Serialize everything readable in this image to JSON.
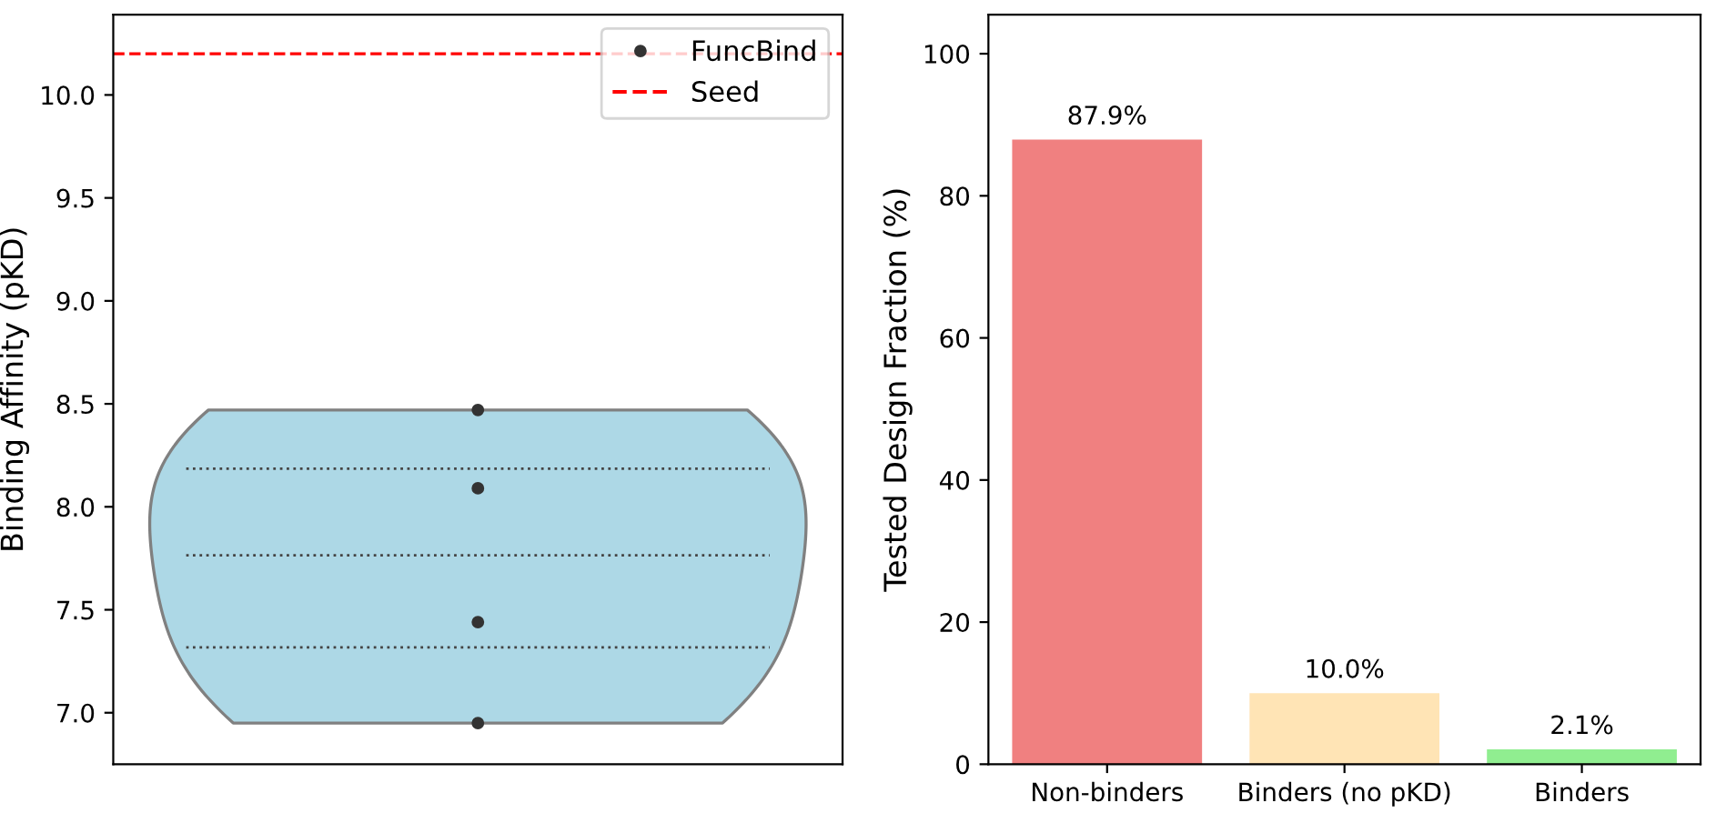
{
  "chart_data": [
    {
      "type": "scatter",
      "ylabel": "Binding Affinity (pKD)",
      "categories": [
        null
      ],
      "color": "#add8e6",
      "series": [
        {
          "name": "FuncBind",
          "color": "#333333",
          "x": [
            null,
            null,
            null,
            null
          ],
          "values": [
            8.47,
            8.09,
            7.44,
            6.95
          ]
        }
      ],
      "ref_lines": [
        {
          "axis": "y",
          "value": 10.2,
          "label": "Seed",
          "color": "#ff0000",
          "line_style": "dashed"
        }
      ],
      "ylim": [
        6.75,
        10.39
      ],
      "yticks": [
        {
          "value": 7.0,
          "label": "7.0"
        },
        {
          "value": 7.5,
          "label": "7.5"
        },
        {
          "value": 8.0,
          "label": "8.0"
        },
        {
          "value": 8.5,
          "label": "8.5"
        },
        {
          "value": 9.0,
          "label": "9.0"
        },
        {
          "value": 9.5,
          "label": "9.5"
        },
        {
          "value": 10.0,
          "label": "10.0"
        }
      ],
      "tick_labels": "y",
      "legend": "top right",
      "marker": "circle"
    },
    {
      "type": "bar",
      "ylabel": "Tested Design Fraction (%)",
      "categories": [
        "Non-binders",
        "Binders (no pKD)",
        "Binders"
      ],
      "values": [
        87.9,
        10.0,
        2.1
      ],
      "colors": [
        "#f08080",
        "#ffe4b5",
        "#90ee90"
      ],
      "value_labels": [
        "87.9%",
        "10.0%",
        "2.1%"
      ],
      "ylim": [
        0,
        105.5
      ],
      "yticks": [
        0,
        20,
        40,
        60,
        80,
        100
      ]
    }
  ]
}
